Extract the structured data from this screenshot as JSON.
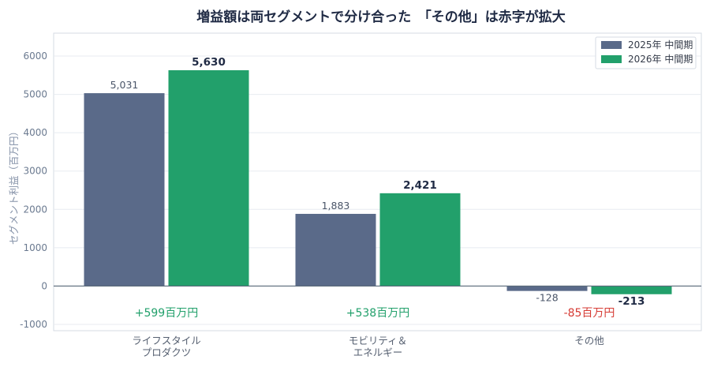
{
  "chart_data": {
    "type": "bar",
    "title": "増益額は両セグメントで分け合った　「その他」は赤字が拡大",
    "ylabel": "セグメント利益（百万円）",
    "ylim": [
      -1000,
      6000
    ],
    "yticks": [
      -1000,
      0,
      1000,
      2000,
      3000,
      4000,
      5000,
      6000
    ],
    "categories": [
      [
        "ライフスタイル",
        "プロダクツ"
      ],
      [
        "モビリティ＆",
        "エネルギー"
      ],
      [
        "その他"
      ]
    ],
    "series": [
      {
        "name": "2025年 中間期",
        "values": [
          5031,
          1883,
          -128
        ],
        "labels": [
          "5,031",
          "1,883",
          "-128"
        ],
        "color": "#5a6a89"
      },
      {
        "name": "2026年 中間期",
        "values": [
          5630,
          2421,
          -213
        ],
        "labels": [
          "5,630",
          "2,421",
          "-213"
        ],
        "color": "#22a06b"
      }
    ],
    "deltas": [
      {
        "text": "+599百万円",
        "color": "#22a06b"
      },
      {
        "text": "+538百万円",
        "color": "#22a06b"
      },
      {
        "text": "-85百万円",
        "color": "#d63b34"
      }
    ],
    "grid": true,
    "legend": "top-right"
  }
}
